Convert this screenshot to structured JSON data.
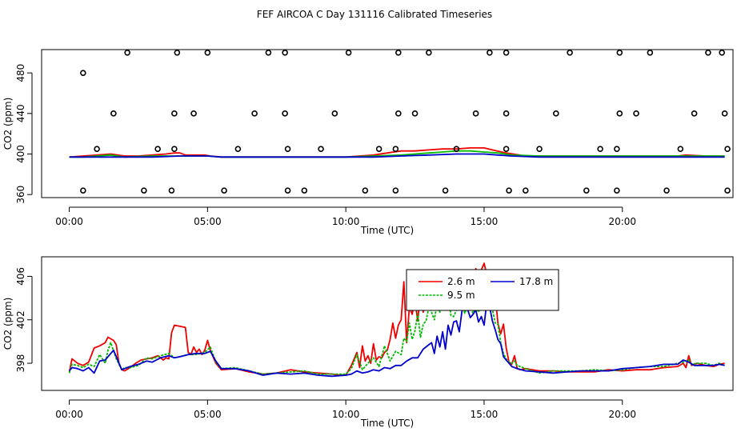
{
  "title": "FEF AIRCOA C  Day 131116  Calibrated Timeseries",
  "chart_data": [
    {
      "type": "scatter",
      "xlabel": "Time (UTC)",
      "ylabel": "CO2 (ppm)",
      "xlim": [
        -1,
        24
      ],
      "ylim": [
        357,
        503
      ],
      "xticks": [
        0,
        5,
        10,
        15,
        20
      ],
      "xtick_labels": [
        "00:00",
        "05:00",
        "10:00",
        "15:00",
        "20:00"
      ],
      "yticks": [
        360,
        400,
        440,
        480
      ],
      "ytick_labels": [
        "360",
        "400",
        "440",
        "480"
      ],
      "grid": false,
      "legend": "none",
      "series": [
        {
          "color": "#ee0000",
          "x": [
            0,
            0.5,
            1.0,
            1.5,
            2.0,
            2.5,
            3.0,
            3.5,
            3.8,
            4.0,
            4.2,
            4.5,
            4.9,
            5.1,
            5.5,
            6.0,
            7.0,
            8.0,
            9.0,
            10.0,
            10.5,
            11.0,
            11.5,
            12.0,
            12.5,
            13.0,
            13.5,
            14.0,
            14.5,
            15.0,
            15.3,
            15.8,
            16.5,
            18.0,
            20.0,
            22.0,
            22.3,
            23.0,
            23.7
          ],
          "y": [
            397,
            398,
            399,
            400,
            398,
            398,
            399,
            400,
            401,
            401,
            399,
            399,
            399,
            398,
            397,
            397,
            397,
            397,
            397,
            397,
            398,
            399,
            401,
            403,
            403,
            404,
            405,
            405,
            406,
            406,
            404,
            401,
            398,
            398,
            398,
            398,
            399,
            398,
            398
          ]
        },
        {
          "color": "#00bb00",
          "x": [
            0,
            0.5,
            1.0,
            1.5,
            2.0,
            3.0,
            4.0,
            5.0,
            5.5,
            6.0,
            8.0,
            10.0,
            11.0,
            12.0,
            12.5,
            13.0,
            13.5,
            14.0,
            14.5,
            15.0,
            15.5,
            16.0,
            17.0,
            20.0,
            22.0,
            23.0,
            23.7
          ],
          "y": [
            397,
            397,
            398,
            399,
            397,
            398,
            398,
            398,
            397,
            397,
            397,
            397,
            398,
            399,
            400,
            401,
            402,
            403,
            403,
            402,
            401,
            399,
            398,
            398,
            398,
            398,
            398
          ]
        },
        {
          "color": "#0000cc",
          "x": [
            0,
            1.0,
            2.0,
            3.0,
            4.0,
            5.0,
            5.5,
            8.0,
            10.0,
            11.0,
            12.0,
            13.0,
            14.0,
            14.5,
            15.0,
            15.5,
            16.0,
            17.0,
            20.0,
            23.7
          ],
          "y": [
            397,
            397,
            397,
            397,
            398,
            398,
            397,
            397,
            397,
            397,
            398,
            399,
            400,
            400,
            400,
            399,
            398,
            397,
            397,
            397
          ]
        },
        {
          "color": "#000000",
          "marker": "open-circle",
          "x": [
            0.5,
            2.1,
            3.9,
            5.0,
            7.2,
            7.8,
            10.1,
            11.9,
            13.0,
            15.2,
            15.8,
            18.1,
            19.9,
            21.0,
            23.1,
            23.6,
            1.6,
            3.8,
            4.5,
            6.7,
            7.8,
            9.6,
            11.9,
            12.5,
            14.7,
            15.8,
            17.6,
            19.9,
            20.5,
            22.6,
            23.7,
            1.0,
            3.2,
            3.8,
            6.1,
            7.9,
            9.1,
            11.2,
            11.8,
            14.0,
            15.8,
            17.0,
            19.2,
            19.8,
            22.1,
            23.8,
            0.5,
            2.7,
            3.7,
            5.6,
            7.9,
            8.5,
            10.7,
            11.8,
            13.6,
            15.9,
            16.5,
            18.7,
            19.8,
            21.6,
            23.8
          ],
          "y": [
            480,
            500,
            500,
            500,
            500,
            500,
            500,
            500,
            500,
            500,
            500,
            500,
            500,
            500,
            500,
            500,
            440,
            440,
            440,
            440,
            440,
            440,
            440,
            440,
            440,
            440,
            440,
            440,
            440,
            440,
            440,
            405,
            405,
            405,
            405,
            405,
            405,
            405,
            405,
            405,
            405,
            405,
            405,
            405,
            405,
            405,
            364,
            364,
            364,
            364,
            364,
            364,
            364,
            364,
            364,
            364,
            364,
            364,
            364,
            364,
            364
          ]
        }
      ]
    },
    {
      "type": "line",
      "xlabel": "Time (UTC)",
      "ylabel": "CO2 (ppm)",
      "xlim": [
        -1,
        24
      ],
      "ylim": [
        395.5,
        407.8
      ],
      "xticks": [
        0,
        5,
        10,
        15,
        20
      ],
      "xtick_labels": [
        "00:00",
        "05:00",
        "10:00",
        "15:00",
        "20:00"
      ],
      "yticks": [
        398,
        402,
        406
      ],
      "ytick_labels": [
        "398",
        "402",
        "406"
      ],
      "grid": false,
      "legend": "top-center",
      "series": [
        {
          "name": "2.6 m",
          "color": "#ee0000",
          "style": "solid",
          "x": [
            0,
            0.1,
            0.3,
            0.5,
            0.7,
            0.9,
            1.1,
            1.3,
            1.4,
            1.6,
            1.7,
            1.8,
            1.9,
            2.0,
            2.2,
            2.4,
            2.6,
            2.8,
            3.0,
            3.2,
            3.4,
            3.5,
            3.6,
            3.7,
            3.8,
            4.0,
            4.2,
            4.3,
            4.4,
            4.5,
            4.6,
            4.7,
            4.8,
            4.9,
            5.0,
            5.1,
            5.3,
            5.5,
            6.0,
            6.5,
            7.0,
            7.5,
            8.0,
            8.5,
            9.0,
            9.5,
            9.8,
            10.0,
            10.2,
            10.4,
            10.5,
            10.6,
            10.7,
            10.8,
            10.9,
            11.0,
            11.1,
            11.2,
            11.3,
            11.4,
            11.5,
            11.6,
            11.7,
            11.8,
            11.9,
            12.0,
            12.1,
            12.2,
            12.3,
            12.4,
            12.5,
            12.6,
            12.7,
            12.8,
            12.9,
            13.0,
            13.1,
            13.2,
            13.3,
            13.4,
            13.5,
            13.6,
            13.7,
            13.8,
            13.9,
            14.0,
            14.1,
            14.2,
            14.3,
            14.4,
            14.5,
            14.6,
            14.7,
            14.8,
            14.9,
            15.0,
            15.1,
            15.2,
            15.3,
            15.4,
            15.5,
            15.6,
            15.7,
            15.8,
            15.9,
            16.0,
            16.1,
            16.2,
            16.3,
            16.5,
            17.0,
            17.5,
            18.0,
            18.5,
            19.0,
            19.5,
            20.0,
            20.5,
            21.0,
            21.5,
            22.0,
            22.2,
            22.3,
            22.4,
            22.5,
            22.7,
            23.0,
            23.3,
            23.5,
            23.7
          ],
          "y": [
            397.2,
            398.4,
            398.0,
            397.8,
            398.1,
            399.4,
            399.6,
            399.9,
            400.4,
            400.1,
            399.7,
            397.9,
            397.4,
            397.3,
            397.6,
            398.0,
            398.3,
            398.4,
            398.5,
            398.7,
            398.3,
            398.5,
            398.4,
            400.8,
            401.5,
            401.4,
            401.3,
            399.0,
            398.8,
            399.5,
            399.0,
            399.3,
            398.8,
            399.2,
            400.1,
            399.2,
            398.0,
            397.4,
            397.5,
            397.2,
            397.0,
            397.1,
            397.4,
            397.2,
            397.1,
            397.0,
            396.9,
            396.9,
            397.8,
            399.0,
            397.6,
            399.6,
            398.2,
            398.7,
            398.0,
            399.8,
            398.3,
            398.6,
            398.5,
            399.0,
            399.2,
            400.2,
            401.7,
            400.3,
            401.5,
            402.0,
            405.5,
            399.9,
            403.2,
            402.5,
            403.8,
            401.9,
            404.4,
            402.7,
            404.6,
            404.9,
            404.7,
            403.7,
            405.1,
            405.7,
            404.5,
            405.1,
            404.6,
            405.7,
            404.1,
            405.0,
            405.4,
            404.4,
            405.7,
            406.1,
            404.3,
            405.5,
            406.7,
            406.3,
            406.6,
            407.2,
            406.1,
            405.4,
            406.4,
            404.4,
            401.7,
            400.7,
            401.6,
            399.4,
            398.1,
            397.9,
            398.7,
            397.5,
            397.4,
            397.5,
            397.3,
            397.3,
            397.2,
            397.2,
            397.2,
            397.4,
            397.3,
            397.4,
            397.4,
            397.6,
            397.7,
            398.0,
            397.6,
            398.7,
            397.8,
            398.0,
            397.8,
            397.7,
            397.9,
            398.0
          ]
        },
        {
          "name": "9.5 m",
          "color": "#00bb00",
          "style": "dashed",
          "x": [
            0,
            0.1,
            0.3,
            0.5,
            0.7,
            0.9,
            1.1,
            1.3,
            1.4,
            1.5,
            1.7,
            1.9,
            2.0,
            2.2,
            2.5,
            2.8,
            3.0,
            3.3,
            3.6,
            3.8,
            4.0,
            4.3,
            4.6,
            4.9,
            5.1,
            5.3,
            5.5,
            6.0,
            6.5,
            7.0,
            7.5,
            8.0,
            8.5,
            9.0,
            9.5,
            10.0,
            10.2,
            10.4,
            10.6,
            10.8,
            11.0,
            11.2,
            11.4,
            11.6,
            11.8,
            12.0,
            12.1,
            12.2,
            12.3,
            12.4,
            12.5,
            12.6,
            12.7,
            12.8,
            12.9,
            13.0,
            13.1,
            13.2,
            13.3,
            13.4,
            13.5,
            13.6,
            13.7,
            13.8,
            13.9,
            14.0,
            14.1,
            14.2,
            14.3,
            14.4,
            14.5,
            14.6,
            14.7,
            14.8,
            14.9,
            15.0,
            15.1,
            15.2,
            15.3,
            15.4,
            15.5,
            15.6,
            15.7,
            15.8,
            15.9,
            16.0,
            16.1,
            16.2,
            16.5,
            17.0,
            17.5,
            18.0,
            18.5,
            19.0,
            19.5,
            20.0,
            20.5,
            21.0,
            21.5,
            22.0,
            22.2,
            22.4,
            22.5,
            22.7,
            23.0,
            23.3,
            23.5,
            23.7
          ],
          "y": [
            397.1,
            397.9,
            397.8,
            397.6,
            397.9,
            397.7,
            398.8,
            398.0,
            399.2,
            399.9,
            398.4,
            397.4,
            397.6,
            397.6,
            397.8,
            398.5,
            398.4,
            398.7,
            398.9,
            398.5,
            398.6,
            398.8,
            398.8,
            399.0,
            399.5,
            398.1,
            397.5,
            397.6,
            397.3,
            397.0,
            397.1,
            397.2,
            397.3,
            397.0,
            397.0,
            397.0,
            397.5,
            398.8,
            397.4,
            398.0,
            398.5,
            397.7,
            399.6,
            398.2,
            399.1,
            398.8,
            400.3,
            400.0,
            401.7,
            400.2,
            401.0,
            402.6,
            400.4,
            401.6,
            401.9,
            403.1,
            402.7,
            402.0,
            403.5,
            402.7,
            403.7,
            404.5,
            404.8,
            402.4,
            402.3,
            402.9,
            403.9,
            403.5,
            402.6,
            403.3,
            403.1,
            402.6,
            403.3,
            402.7,
            403.2,
            402.9,
            404.7,
            404.8,
            403.0,
            401.7,
            401.6,
            399.9,
            398.9,
            398.4,
            398.1,
            398.0,
            398.2,
            397.8,
            397.5,
            397.1,
            397.3,
            397.3,
            397.3,
            397.4,
            397.3,
            397.4,
            397.6,
            397.7,
            397.7,
            398.0,
            398.1,
            398.3,
            397.9,
            398.0,
            398.0,
            397.8,
            398.0,
            397.8
          ]
        },
        {
          "name": "17.8 m",
          "color": "#0000cc",
          "style": "solid",
          "x": [
            0,
            0.1,
            0.3,
            0.5,
            0.7,
            0.9,
            1.1,
            1.3,
            1.5,
            1.6,
            1.7,
            1.9,
            2.0,
            2.2,
            2.5,
            2.8,
            3.0,
            3.3,
            3.6,
            3.8,
            4.0,
            4.3,
            4.6,
            4.9,
            5.1,
            5.3,
            5.5,
            6.0,
            6.5,
            7.0,
            7.5,
            8.0,
            8.5,
            9.0,
            9.5,
            10.0,
            10.2,
            10.4,
            10.6,
            10.8,
            11.0,
            11.2,
            11.4,
            11.6,
            11.8,
            12.0,
            12.2,
            12.4,
            12.6,
            12.8,
            13.0,
            13.1,
            13.2,
            13.3,
            13.4,
            13.5,
            13.6,
            13.7,
            13.8,
            13.9,
            14.0,
            14.1,
            14.2,
            14.3,
            14.4,
            14.5,
            14.6,
            14.7,
            14.8,
            14.9,
            15.0,
            15.1,
            15.2,
            15.3,
            15.4,
            15.5,
            15.6,
            15.7,
            15.8,
            15.9,
            16.0,
            16.2,
            16.5,
            17.0,
            17.5,
            18.0,
            18.5,
            19.0,
            19.5,
            20.0,
            20.5,
            21.0,
            21.5,
            22.0,
            22.2,
            22.4,
            22.6,
            23.0,
            23.3,
            23.5,
            23.7
          ],
          "y": [
            397.3,
            397.6,
            397.5,
            397.3,
            397.6,
            397.1,
            398.2,
            398.3,
            398.9,
            399.2,
            398.6,
            397.4,
            397.5,
            397.7,
            397.9,
            398.2,
            398.1,
            398.5,
            398.7,
            398.5,
            398.6,
            398.8,
            398.9,
            398.9,
            399.1,
            398.2,
            397.5,
            397.5,
            397.3,
            396.9,
            397.1,
            397.0,
            397.1,
            396.9,
            396.8,
            396.9,
            397.0,
            397.3,
            397.1,
            397.2,
            397.4,
            397.3,
            397.6,
            397.5,
            397.8,
            397.8,
            398.2,
            398.5,
            398.5,
            399.3,
            399.7,
            399.9,
            398.9,
            400.5,
            399.5,
            400.9,
            399.3,
            401.5,
            400.6,
            401.8,
            401.9,
            400.9,
            402.8,
            403.7,
            403.0,
            402.2,
            402.5,
            402.9,
            401.8,
            402.3,
            401.5,
            403.7,
            403.2,
            401.9,
            401.1,
            400.2,
            399.8,
            398.6,
            398.3,
            398.0,
            397.7,
            397.5,
            397.3,
            397.2,
            397.1,
            397.2,
            397.3,
            397.3,
            397.3,
            397.5,
            397.6,
            397.7,
            397.9,
            397.9,
            398.3,
            398.1,
            397.8,
            397.8,
            397.8,
            397.9,
            397.8
          ]
        }
      ]
    }
  ]
}
